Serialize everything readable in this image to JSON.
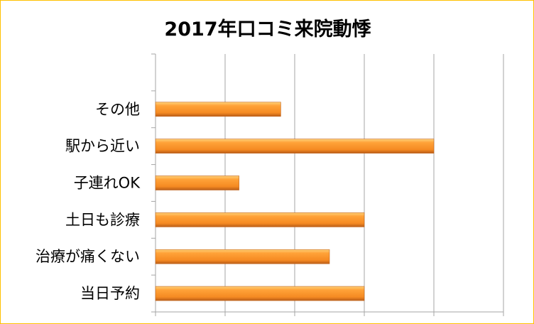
{
  "chart_data": {
    "type": "bar",
    "orientation": "horizontal",
    "title": "2017年口コミ来院動悸",
    "categories": [
      "当日予約",
      "治療が痛くない",
      "土日も診療",
      "子連れOK",
      "駅から近い",
      "その他"
    ],
    "values": [
      3,
      2.5,
      3,
      1.2,
      4,
      1.8
    ],
    "xlim": [
      0,
      5
    ],
    "xticks_labeled": false,
    "grid": "vertical",
    "legend": "none",
    "colors": {
      "bar": "#F7931E",
      "bar_light": "#FFC15A",
      "bar_dark": "#C2631A",
      "grid": "#A6A6A6",
      "frame": "#FFC000"
    }
  }
}
